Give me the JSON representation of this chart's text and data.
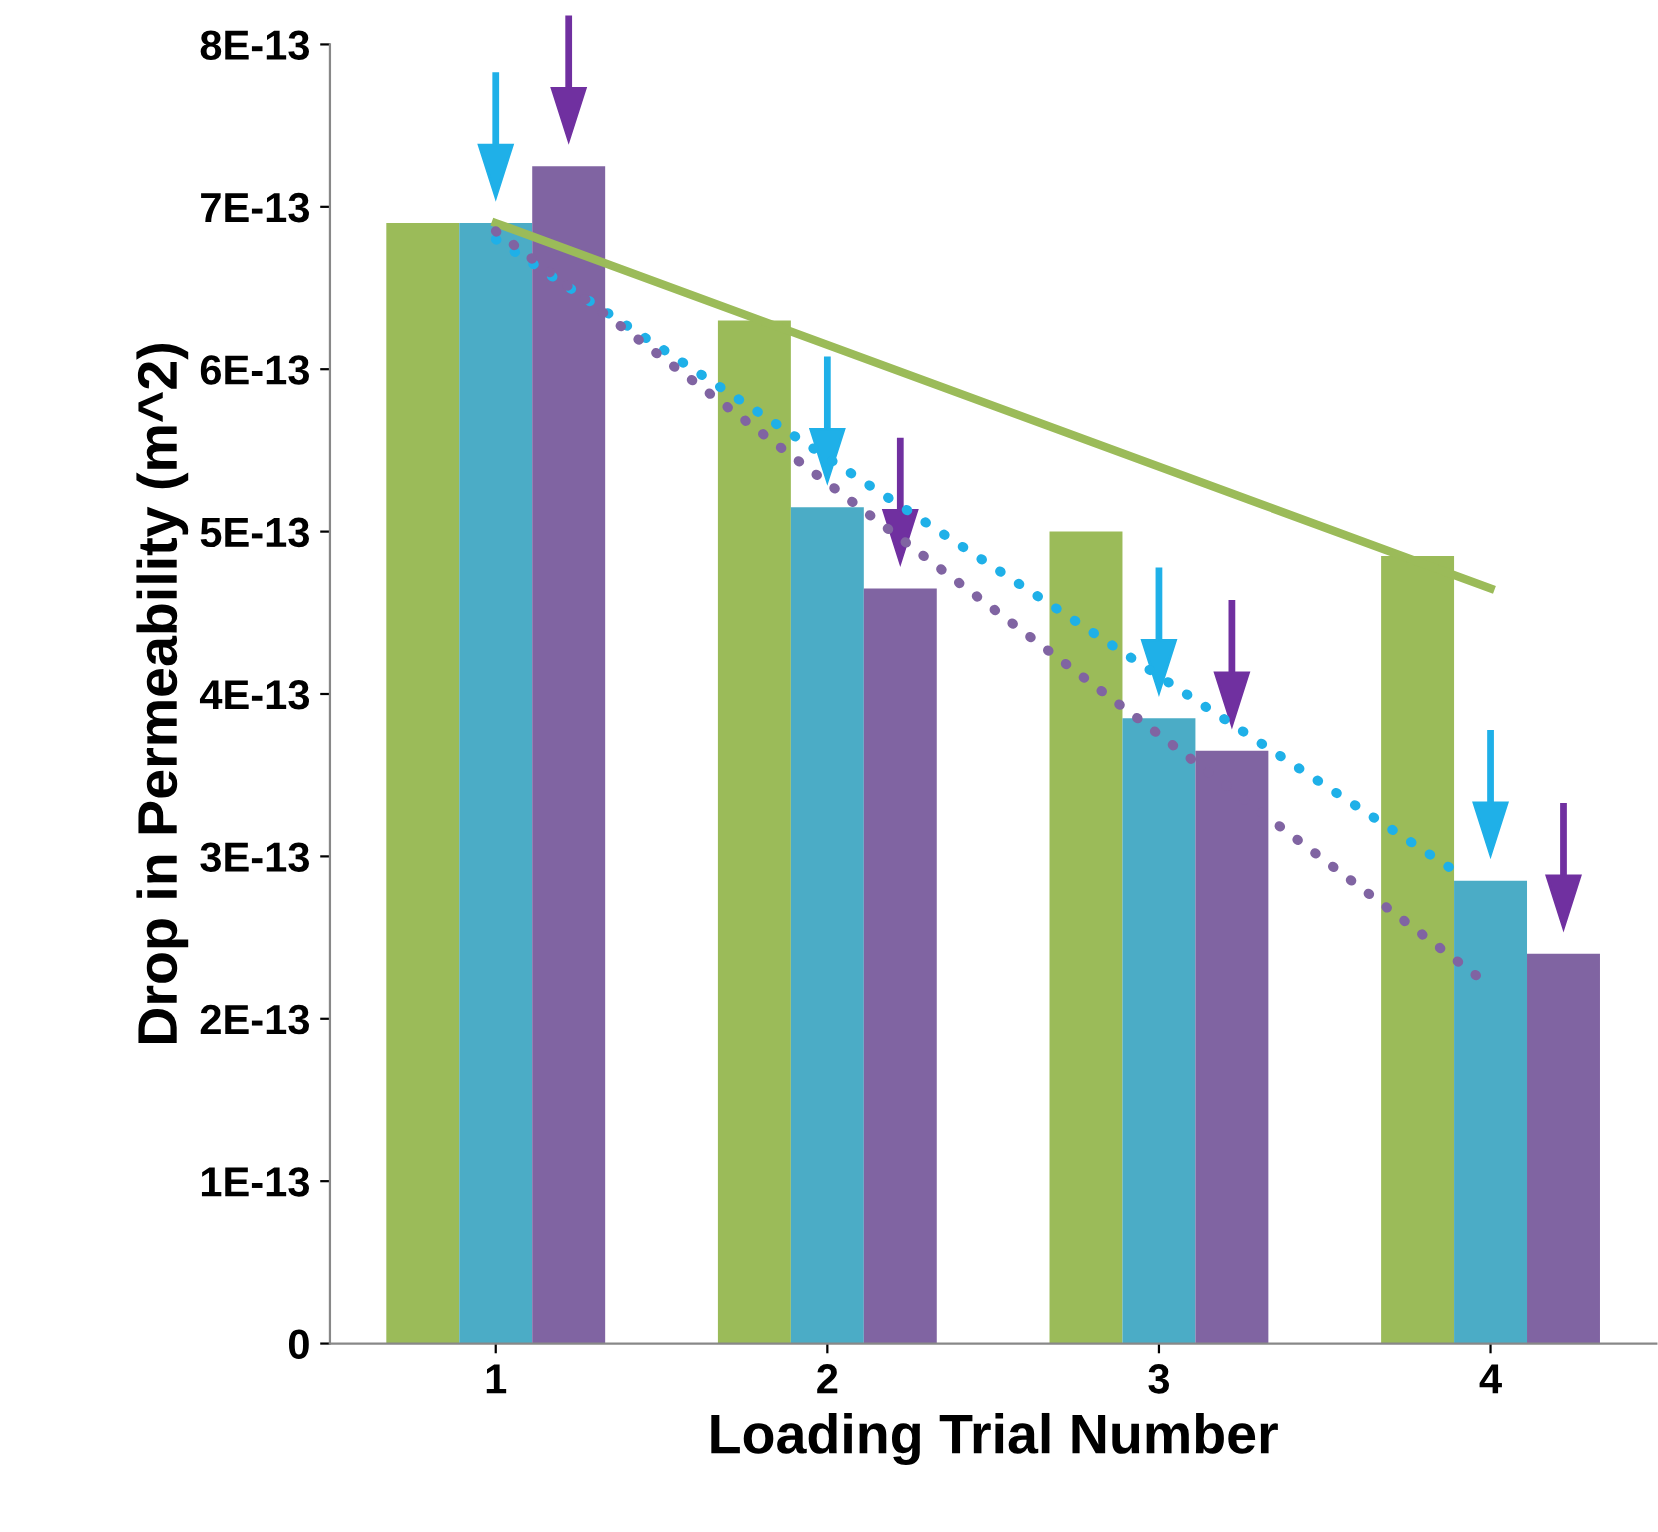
{
  "chart_data": {
    "type": "bar",
    "xlabel": "Loading Trial Number",
    "ylabel": "Drop in Permeability (m^2)",
    "x": [
      1,
      2,
      3,
      4
    ],
    "xlim": [
      0.5,
      4.5
    ],
    "xticks": [
      1,
      2,
      3,
      4
    ],
    "ylim": [
      0,
      8e-13
    ],
    "yticks": [
      0,
      {
        "value": 1e-13,
        "label": "1E-13"
      },
      {
        "value": 2e-13,
        "label": "2E-13"
      },
      {
        "value": 3e-13,
        "label": "3E-13"
      },
      {
        "value": 4e-13,
        "label": "4E-13"
      },
      {
        "value": 5e-13,
        "label": "5E-13"
      },
      {
        "value": 6e-13,
        "label": "6E-13"
      },
      {
        "value": 7e-13,
        "label": "7E-13"
      },
      {
        "value": 8e-13,
        "label": "8E-13"
      }
    ],
    "grid": false,
    "legend": false,
    "series": [
      {
        "color": "#9bbb59",
        "values": [
          6.9e-13,
          6.3e-13,
          5e-13,
          4.85e-13
        ]
      },
      {
        "color": "#4bacc6",
        "values": [
          6.9e-13,
          5.15e-13,
          3.85e-13,
          2.85e-13
        ]
      },
      {
        "color": "#8064a2",
        "values": [
          7.25e-13,
          4.65e-13,
          3.65e-13,
          2.4e-13
        ]
      },
      {
        "type": "line",
        "color": "#9bbb59",
        "line_style": "solid",
        "marker": "none",
        "x": [
          1,
          4
        ],
        "values": [
          6.9e-13,
          4.65e-13
        ]
      },
      {
        "type": "line",
        "color": "#1fb0e8",
        "line_style": "dotted",
        "marker": "none",
        "x": [
          1,
          3.9
        ],
        "values": [
          6.8e-13,
          2.9e-13
        ]
      },
      {
        "type": "line",
        "color": "#8064a2",
        "line_style": "dotted",
        "marker": "none",
        "x": [
          1,
          4
        ],
        "values": [
          6.85e-13,
          2.2e-13
        ]
      }
    ]
  }
}
